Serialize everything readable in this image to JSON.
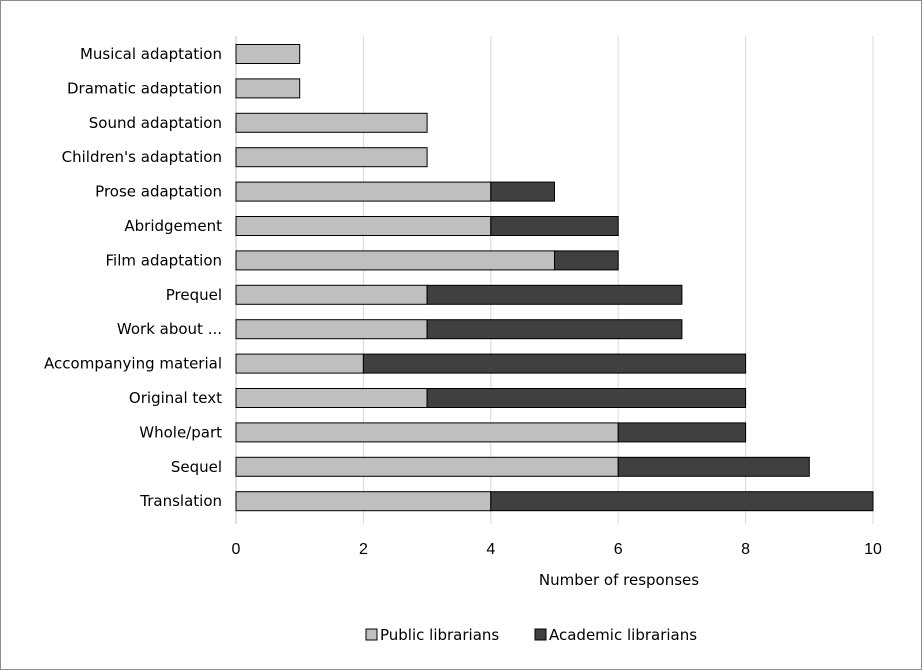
{
  "chart_data": {
    "type": "bar",
    "orientation": "horizontal",
    "stacked": true,
    "categories": [
      "Musical adaptation",
      "Dramatic adaptation",
      "Sound adaptation",
      "Children's adaptation",
      "Prose adaptation",
      "Abridgement",
      "Film adaptation",
      "Prequel",
      "Work about ...",
      "Accompanying material",
      "Original text",
      "Whole/part",
      "Sequel",
      "Translation"
    ],
    "series": [
      {
        "name": "Public librarians",
        "color": "#bfbfbf",
        "values": [
          1,
          1,
          3,
          3,
          4,
          4,
          5,
          3,
          3,
          2,
          3,
          6,
          6,
          4
        ]
      },
      {
        "name": "Academic librarians",
        "color": "#404040",
        "values": [
          0,
          0,
          0,
          0,
          1,
          2,
          1,
          4,
          4,
          6,
          5,
          2,
          3,
          6
        ]
      }
    ],
    "xlabel": "Number of responses",
    "xlim": [
      0,
      10
    ],
    "xticks": [
      "0",
      "2",
      "4",
      "6",
      "8",
      "10"
    ],
    "grid": true,
    "legend_position": "bottom"
  }
}
